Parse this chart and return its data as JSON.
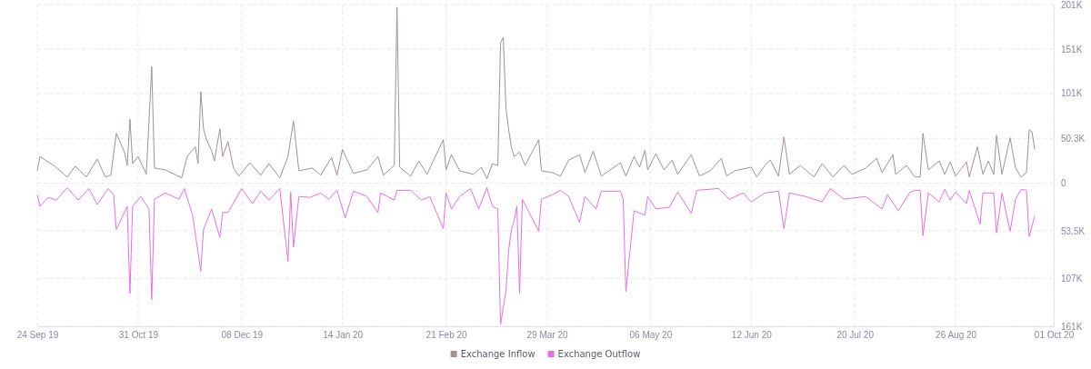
{
  "chart_data": {
    "type": "line",
    "series": [
      {
        "name": "Exchange Inflow",
        "color": "#a39290",
        "x": [
          "2019-09-24",
          "2019-09-25",
          "2019-09-30",
          "2019-10-05",
          "2019-10-08",
          "2019-10-12",
          "2019-10-16",
          "2019-10-19",
          "2019-10-21",
          "2019-10-23",
          "2019-10-26",
          "2019-10-27",
          "2019-10-28",
          "2019-10-29",
          "2019-10-31",
          "2019-11-03",
          "2019-11-05",
          "2019-11-06",
          "2019-11-10",
          "2019-11-16",
          "2019-11-18",
          "2019-11-21",
          "2019-11-22",
          "2019-11-23",
          "2019-11-24",
          "2019-11-25",
          "2019-11-27",
          "2019-11-28",
          "2019-11-30",
          "2019-12-01",
          "2019-12-03",
          "2019-12-05",
          "2019-12-07",
          "2019-12-11",
          "2019-12-15",
          "2019-12-18",
          "2019-12-22",
          "2019-12-25",
          "2019-12-27",
          "2019-12-29",
          "2020-01-03",
          "2020-01-06",
          "2020-01-10",
          "2020-01-12",
          "2020-01-14",
          "2020-01-18",
          "2020-01-23",
          "2020-01-27",
          "2020-01-29",
          "2020-02-02",
          "2020-02-03",
          "2020-02-04",
          "2020-02-08",
          "2020-02-11",
          "2020-02-14",
          "2020-02-20",
          "2020-02-21",
          "2020-02-23",
          "2020-02-26",
          "2020-03-02",
          "2020-03-05",
          "2020-03-07",
          "2020-03-09",
          "2020-03-11",
          "2020-03-12",
          "2020-03-13",
          "2020-03-14",
          "2020-03-15",
          "2020-03-16",
          "2020-03-17",
          "2020-03-19",
          "2020-03-21",
          "2020-03-26",
          "2020-03-27",
          "2020-03-31",
          "2020-04-03",
          "2020-04-06",
          "2020-04-10",
          "2020-04-12",
          "2020-04-15",
          "2020-04-18",
          "2020-04-25",
          "2020-04-27",
          "2020-04-30",
          "2020-05-02",
          "2020-05-04",
          "2020-05-05",
          "2020-05-08",
          "2020-05-11",
          "2020-05-14",
          "2020-05-16",
          "2020-05-21",
          "2020-05-24",
          "2020-05-28",
          "2020-06-01",
          "2020-06-03",
          "2020-06-06",
          "2020-06-12",
          "2020-06-14",
          "2020-06-17",
          "2020-06-19",
          "2020-06-22",
          "2020-06-24",
          "2020-06-26",
          "2020-06-30",
          "2020-07-05",
          "2020-07-08",
          "2020-07-12",
          "2020-07-16",
          "2020-07-19",
          "2020-07-24",
          "2020-07-28",
          "2020-07-30",
          "2020-08-03",
          "2020-08-04",
          "2020-08-08",
          "2020-08-11",
          "2020-08-13",
          "2020-08-14",
          "2020-08-16",
          "2020-08-20",
          "2020-08-22",
          "2020-08-24",
          "2020-08-26",
          "2020-08-30",
          "2020-08-31",
          "2020-09-03",
          "2020-09-05",
          "2020-09-07",
          "2020-09-09",
          "2020-09-10",
          "2020-09-12",
          "2020-09-15",
          "2020-09-17",
          "2020-09-19",
          "2020-09-21",
          "2020-09-22",
          "2020-09-23",
          "2020-09-24"
        ],
        "values": [
          14000,
          30000,
          20000,
          7000,
          19000,
          7000,
          27000,
          7000,
          9000,
          56000,
          35000,
          20000,
          72000,
          22000,
          30000,
          10000,
          131000,
          17000,
          15000,
          6000,
          30000,
          41000,
          22000,
          103000,
          61000,
          50000,
          36000,
          25000,
          61000,
          30000,
          47000,
          17000,
          8000,
          23000,
          9000,
          22000,
          6000,
          30000,
          70000,
          14000,
          17000,
          9000,
          29000,
          9000,
          38000,
          11000,
          15000,
          30000,
          9000,
          20000,
          198000,
          18000,
          8000,
          25000,
          10000,
          49000,
          15000,
          32000,
          14000,
          10000,
          18000,
          5000,
          22000,
          20000,
          158000,
          164000,
          84000,
          60000,
          40000,
          30000,
          35000,
          20000,
          49000,
          14000,
          12000,
          8000,
          26000,
          32000,
          12000,
          36000,
          8000,
          23000,
          8000,
          30000,
          18000,
          37000,
          15000,
          33000,
          15000,
          26000,
          10000,
          32000,
          8000,
          14000,
          28000,
          8000,
          14000,
          18000,
          7000,
          20000,
          26000,
          8000,
          52000,
          10000,
          20000,
          7000,
          22000,
          7000,
          20000,
          10000,
          17000,
          28000,
          12000,
          32000,
          10000,
          20000,
          7000,
          7000,
          56000,
          15000,
          25000,
          10000,
          24000,
          8000,
          24000,
          7000,
          41000,
          10000,
          25000,
          10000,
          54000,
          10000,
          51000,
          17000,
          7000,
          12000,
          60000,
          58000,
          38000
        ]
      },
      {
        "name": "Exchange Outflow",
        "color": "#e76ee8",
        "x": [
          "2019-09-24",
          "2019-09-25",
          "2019-09-28",
          "2019-10-01",
          "2019-10-05",
          "2019-10-09",
          "2019-10-13",
          "2019-10-16",
          "2019-10-20",
          "2019-10-22",
          "2019-10-23",
          "2019-10-25",
          "2019-10-27",
          "2019-10-28",
          "2019-10-29",
          "2019-11-01",
          "2019-11-04",
          "2019-11-05",
          "2019-11-06",
          "2019-11-10",
          "2019-11-15",
          "2019-11-17",
          "2019-11-20",
          "2019-11-23",
          "2019-11-24",
          "2019-11-27",
          "2019-11-30",
          "2019-12-01",
          "2019-12-03",
          "2019-12-08",
          "2019-12-12",
          "2019-12-15",
          "2019-12-18",
          "2019-12-22",
          "2019-12-25",
          "2019-12-26",
          "2019-12-27",
          "2019-12-29",
          "2020-01-02",
          "2020-01-06",
          "2020-01-09",
          "2020-01-12",
          "2020-01-15",
          "2020-01-18",
          "2020-01-23",
          "2020-01-27",
          "2020-01-28",
          "2020-02-02",
          "2020-02-03",
          "2020-02-08",
          "2020-02-12",
          "2020-02-15",
          "2020-02-20",
          "2020-02-21",
          "2020-02-23",
          "2020-02-26",
          "2020-03-01",
          "2020-03-04",
          "2020-03-07",
          "2020-03-09",
          "2020-03-11",
          "2020-03-12",
          "2020-03-13",
          "2020-03-14",
          "2020-03-15",
          "2020-03-16",
          "2020-03-17",
          "2020-03-18",
          "2020-03-19",
          "2020-03-20",
          "2020-03-23",
          "2020-03-26",
          "2020-03-27",
          "2020-03-31",
          "2020-04-03",
          "2020-04-06",
          "2020-04-10",
          "2020-04-12",
          "2020-04-16",
          "2020-04-18",
          "2020-04-25",
          "2020-04-26",
          "2020-04-27",
          "2020-04-30",
          "2020-05-04",
          "2020-05-05",
          "2020-05-08",
          "2020-05-13",
          "2020-05-16",
          "2020-05-21",
          "2020-05-23",
          "2020-05-31",
          "2020-06-04",
          "2020-06-09",
          "2020-06-12",
          "2020-06-17",
          "2020-06-22",
          "2020-06-24",
          "2020-06-26",
          "2020-07-02",
          "2020-07-08",
          "2020-07-11",
          "2020-07-16",
          "2020-07-24",
          "2020-07-30",
          "2020-08-01",
          "2020-08-05",
          "2020-08-09",
          "2020-08-11",
          "2020-08-13",
          "2020-08-14",
          "2020-08-16",
          "2020-08-20",
          "2020-08-22",
          "2020-08-24",
          "2020-08-26",
          "2020-08-30",
          "2020-08-31",
          "2020-09-04",
          "2020-09-05",
          "2020-09-09",
          "2020-09-10",
          "2020-09-12",
          "2020-09-15",
          "2020-09-17",
          "2020-09-19",
          "2020-09-21",
          "2020-09-22",
          "2020-09-24"
        ],
        "values": [
          -13000,
          -26000,
          -16000,
          -19000,
          -5000,
          -19000,
          -6000,
          -24000,
          -6000,
          -13000,
          -52000,
          -39000,
          -26000,
          -124000,
          -26000,
          -15000,
          -29000,
          -131000,
          -18000,
          -11000,
          -18000,
          -6000,
          -36000,
          -99000,
          -52000,
          -29000,
          -61000,
          -33000,
          -33000,
          -6000,
          -23000,
          -9000,
          -19000,
          -6000,
          -88000,
          -10000,
          -72000,
          -15000,
          -16000,
          -11000,
          -18000,
          -8000,
          -39000,
          -9000,
          -15000,
          -33000,
          -11000,
          -19000,
          -8000,
          -8000,
          -19000,
          -15000,
          -51000,
          -11000,
          -29000,
          -15000,
          -6000,
          -29000,
          -5000,
          -26000,
          -29000,
          -159000,
          -140000,
          -121000,
          -75000,
          -52000,
          -42000,
          -26000,
          -124000,
          -18000,
          -36000,
          -54000,
          -18000,
          -13000,
          -8000,
          -15000,
          -44000,
          -15000,
          -29000,
          -9000,
          -9000,
          -18000,
          -122000,
          -31000,
          -36000,
          -15000,
          -29000,
          -27000,
          -10000,
          -34000,
          -8000,
          -6000,
          -18000,
          -11000,
          -21000,
          -11000,
          -9000,
          -51000,
          -11000,
          -15000,
          -21000,
          -6000,
          -18000,
          -15000,
          -29000,
          -13000,
          -31000,
          -11000,
          -8000,
          -8000,
          -59000,
          -11000,
          -21000,
          -7000,
          -19000,
          -10000,
          -23000,
          -8000,
          -46000,
          -11000,
          -11000,
          -56000,
          -11000,
          -54000,
          -18000,
          -7000,
          -8000,
          -60000,
          -37000
        ]
      }
    ],
    "xlim": [
      "2019-09-24",
      "2020-10-01"
    ],
    "xticks": [
      {
        "value": "2019-09-24",
        "label": "24 Sep 19"
      },
      {
        "value": "2019-10-31",
        "label": "31 Oct 19"
      },
      {
        "value": "2019-12-08",
        "label": "08 Dec 19"
      },
      {
        "value": "2020-01-14",
        "label": "14 Jan 20"
      },
      {
        "value": "2020-02-21",
        "label": "21 Feb 20"
      },
      {
        "value": "2020-03-29",
        "label": "29 Mar 20"
      },
      {
        "value": "2020-05-06",
        "label": "06 May 20"
      },
      {
        "value": "2020-06-12",
        "label": "12 Jun 20"
      },
      {
        "value": "2020-07-20",
        "label": "20 Jul 20"
      },
      {
        "value": "2020-08-26",
        "label": "26 Aug 20"
      },
      {
        "value": "2020-10-01",
        "label": "01 Oct 20"
      }
    ],
    "ylim": [
      -161000,
      201000
    ],
    "yticks": [
      {
        "value": 201000,
        "label": "201K"
      },
      {
        "value": 151000,
        "label": "151K"
      },
      {
        "value": 101000,
        "label": "101K"
      },
      {
        "value": 50300,
        "label": "50.3K"
      },
      0,
      {
        "value": -53500,
        "label": "53.5K"
      },
      {
        "value": -107000,
        "label": "107K"
      },
      {
        "value": -161000,
        "label": "161K"
      }
    ],
    "grid": true,
    "legend": "bottom",
    "marker": "none",
    "line_style": "solid"
  }
}
